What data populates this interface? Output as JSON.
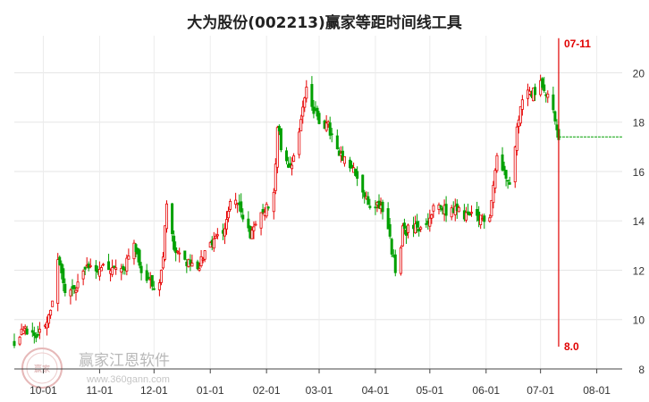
{
  "chart_data": {
    "type": "candlestick",
    "title": "大为股份(002213)赢家等距时间线工具",
    "xlabel": "",
    "ylabel": "",
    "ylim": [
      8,
      21.5
    ],
    "yticks": [
      8,
      10,
      12,
      14,
      16,
      18,
      20
    ],
    "x_range": [
      "2023-09-15",
      "2024-08-15"
    ],
    "xticks": [
      {
        "date": "2023-10-01",
        "label": "10-01"
      },
      {
        "date": "2023-11-01",
        "label": "11-01"
      },
      {
        "date": "2023-12-01",
        "label": "12-01"
      },
      {
        "date": "2024-01-01",
        "label": "01-01"
      },
      {
        "date": "2024-02-01",
        "label": "02-01"
      },
      {
        "date": "2024-03-01",
        "label": "03-01"
      },
      {
        "date": "2024-04-01",
        "label": "04-01"
      },
      {
        "date": "2024-05-01",
        "label": "05-01"
      },
      {
        "date": "2024-06-01",
        "label": "06-01"
      },
      {
        "date": "2024-07-01",
        "label": "07-01"
      },
      {
        "date": "2024-08-01",
        "label": "08-01"
      }
    ],
    "grid": true,
    "up_color": "#e60000",
    "down_color": "#00a000",
    "close_trend": [
      [
        "2023-09-15",
        9.0
      ],
      [
        "2023-09-20",
        9.6
      ],
      [
        "2023-09-28",
        9.4
      ],
      [
        "2023-10-05",
        10.2
      ],
      [
        "2023-10-09",
        12.5
      ],
      [
        "2023-10-14",
        11.0
      ],
      [
        "2023-10-20",
        11.4
      ],
      [
        "2023-10-25",
        12.2
      ],
      [
        "2023-11-02",
        12.1
      ],
      [
        "2023-11-08",
        11.9
      ],
      [
        "2023-11-15",
        12.2
      ],
      [
        "2023-11-20",
        13.2
      ],
      [
        "2023-11-25",
        11.7
      ],
      [
        "2023-12-01",
        11.4
      ],
      [
        "2023-12-05",
        11.8
      ],
      [
        "2023-12-08",
        14.5
      ],
      [
        "2023-12-12",
        13.0
      ],
      [
        "2023-12-18",
        12.4
      ],
      [
        "2023-12-25",
        12.0
      ],
      [
        "2023-12-29",
        12.8
      ],
      [
        "2024-01-05",
        13.4
      ],
      [
        "2024-01-09",
        13.8
      ],
      [
        "2024-01-14",
        15.3
      ],
      [
        "2024-01-19",
        14.0
      ],
      [
        "2024-01-24",
        13.4
      ],
      [
        "2024-01-30",
        14.4
      ],
      [
        "2024-02-05",
        15.0
      ],
      [
        "2024-02-07",
        18.0
      ],
      [
        "2024-02-09",
        17.0
      ],
      [
        "2024-02-14",
        16.2
      ],
      [
        "2024-02-18",
        17.2
      ],
      [
        "2024-02-23",
        19.5
      ],
      [
        "2024-02-27",
        18.4
      ],
      [
        "2024-03-02",
        18.0
      ],
      [
        "2024-03-06",
        17.8
      ],
      [
        "2024-03-12",
        16.6
      ],
      [
        "2024-03-18",
        16.2
      ],
      [
        "2024-03-22",
        15.8
      ],
      [
        "2024-03-28",
        14.6
      ],
      [
        "2024-04-03",
        14.7
      ],
      [
        "2024-04-06",
        14.4
      ],
      [
        "2024-04-11",
        12.4
      ],
      [
        "2024-04-13",
        11.6
      ],
      [
        "2024-04-16",
        13.6
      ],
      [
        "2024-04-22",
        13.7
      ],
      [
        "2024-04-28",
        13.6
      ],
      [
        "2024-05-04",
        14.6
      ],
      [
        "2024-05-10",
        14.4
      ],
      [
        "2024-05-16",
        14.4
      ],
      [
        "2024-05-22",
        14.2
      ],
      [
        "2024-05-28",
        14.0
      ],
      [
        "2024-06-03",
        14.3
      ],
      [
        "2024-06-07",
        16.6
      ],
      [
        "2024-06-11",
        16.0
      ],
      [
        "2024-06-15",
        15.6
      ],
      [
        "2024-06-19",
        18.3
      ],
      [
        "2024-06-23",
        19.2
      ],
      [
        "2024-06-28",
        19.3
      ],
      [
        "2024-07-02",
        19.6
      ],
      [
        "2024-07-06",
        19.0
      ],
      [
        "2024-07-10",
        17.7
      ],
      [
        "2024-07-11",
        17.4
      ]
    ],
    "reference_line": {
      "y": 17.4,
      "from": "2024-07-11",
      "to": "2024-08-15",
      "color": "#00a000"
    },
    "time_line": {
      "date": "2024-07-11",
      "color": "#e00000",
      "top_label": "07-11",
      "bottom_label": "8.0",
      "y_top": 21.4,
      "y_bottom": 8.9
    }
  },
  "watermark": {
    "text": "赢家江恩软件",
    "url": "www.360gann.com",
    "seal": "赢家"
  }
}
